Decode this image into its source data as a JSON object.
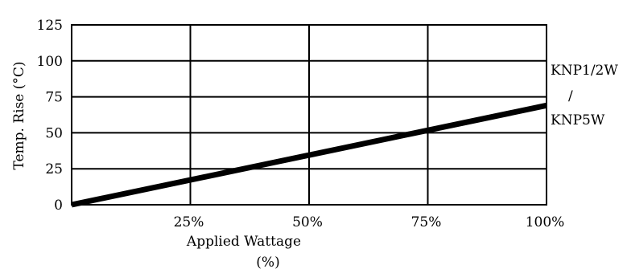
{
  "chart_data": {
    "type": "line",
    "xlabel": "Applied Wattage",
    "xlabel_unit": "(%)",
    "ylabel": "Temp. Rise (°C)",
    "x_ticks": [
      "25%",
      "50%",
      "75%",
      "100%"
    ],
    "y_ticks": [
      "0",
      "25",
      "50",
      "75",
      "100",
      "125"
    ],
    "xlim": [
      0,
      100
    ],
    "ylim": [
      0,
      125
    ],
    "grid": true,
    "series": [
      {
        "name_lines": [
          "KNP1/2W",
          "/",
          "KNP5W"
        ],
        "x": [
          0,
          100
        ],
        "y": [
          0,
          69
        ]
      }
    ],
    "line_color": "#000000",
    "grid_color": "#000000"
  }
}
